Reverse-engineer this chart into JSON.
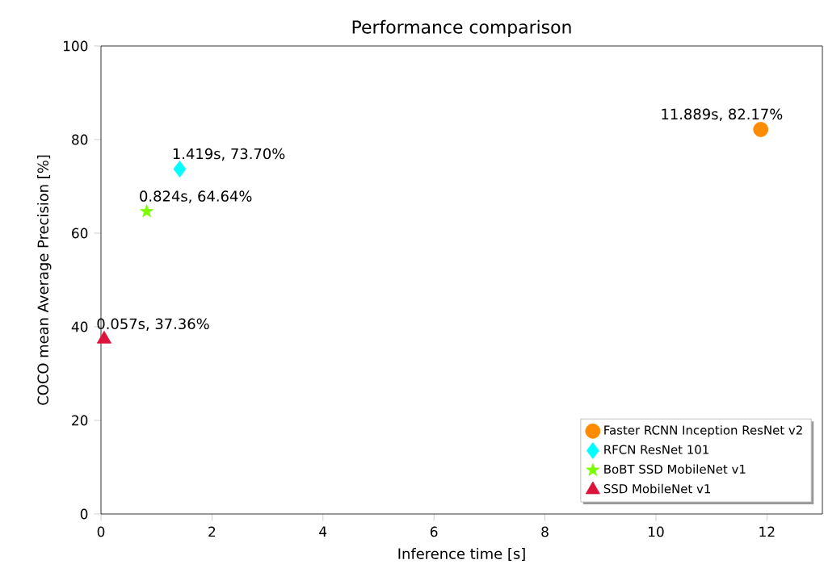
{
  "chart_data": {
    "type": "scatter",
    "title": "Performance comparison",
    "xlabel": "Inference time [s]",
    "ylabel": "COCO mean Average Precision [%]",
    "xlim": [
      0,
      13
    ],
    "ylim": [
      0,
      100
    ],
    "xticks": [
      0,
      2,
      4,
      6,
      8,
      10,
      12
    ],
    "yticks": [
      0,
      20,
      40,
      60,
      80,
      100
    ],
    "grid": false,
    "legend": "bottom right",
    "series": [
      {
        "name": "Faster RCNN Inception ResNet v2",
        "color": "#ff8c00",
        "marker": "circle",
        "x": [
          11.889
        ],
        "values": [
          82.17
        ],
        "value_labels": [
          "11.889s, 82.17%"
        ]
      },
      {
        "name": "RFCN ResNet 101",
        "color": "#00ffff",
        "marker": "diamond",
        "x": [
          1.419
        ],
        "values": [
          73.7
        ],
        "value_labels": [
          "1.419s, 73.70%"
        ]
      },
      {
        "name": "BoBT SSD MobileNet v1",
        "color": "#7cfc00",
        "marker": "star",
        "x": [
          0.824
        ],
        "values": [
          64.64
        ],
        "value_labels": [
          "0.824s, 64.64%"
        ]
      },
      {
        "name": "SSD MobileNet v1",
        "color": "#dc143c",
        "marker": "triangle",
        "x": [
          0.057
        ],
        "values": [
          37.36
        ],
        "value_labels": [
          "0.057s, 37.36%"
        ]
      }
    ]
  }
}
